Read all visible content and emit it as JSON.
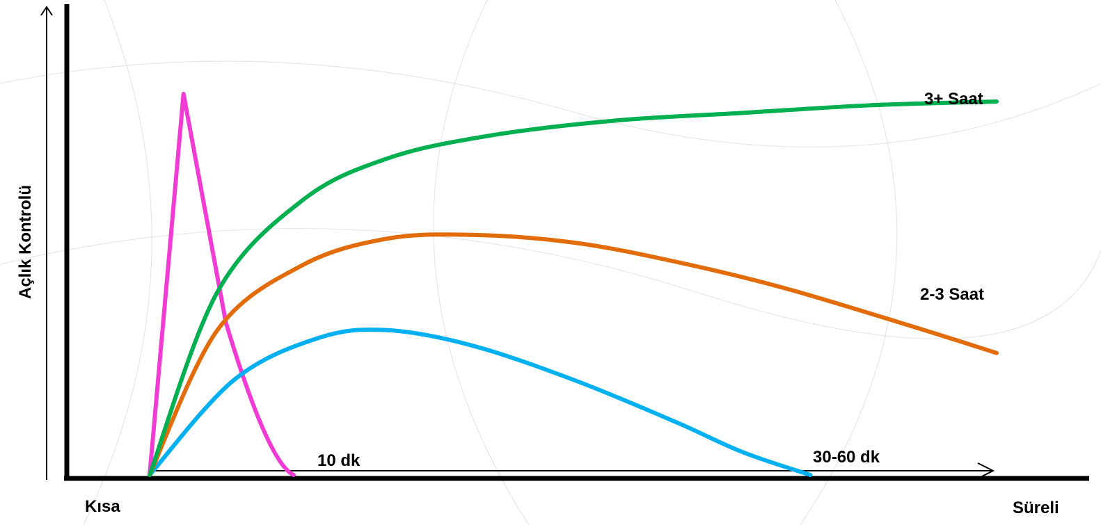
{
  "chart_data": {
    "type": "line",
    "title": "",
    "ylabel": "Açlık Kontrolü",
    "x_start_label": "Kısa",
    "x_end_label": "Süreli",
    "duration_ticks": [
      "10 dk",
      "30-60 dk"
    ],
    "xlim": [
      0,
      100
    ],
    "ylim": [
      0,
      100
    ],
    "grid": false,
    "legend": "none",
    "series": [
      {
        "key": "short",
        "color": "#f23bd4",
        "x": [
          0,
          4,
          9,
          14,
          17
        ],
        "y": [
          0,
          100,
          40,
          3,
          0
        ]
      },
      {
        "key": "medium",
        "color": "#00b0f0",
        "x": [
          0,
          10,
          20,
          28,
          38,
          50,
          62,
          70,
          78
        ],
        "y": [
          0,
          25,
          36,
          38,
          34,
          25,
          14,
          6,
          0
        ]
      },
      {
        "key": "two_three",
        "name": "2-3 Saat",
        "color": "#e36c0a",
        "x": [
          0,
          8,
          18,
          28,
          38,
          50,
          62,
          75,
          90,
          100
        ],
        "y": [
          0,
          38,
          55,
          62,
          63,
          61,
          56,
          49,
          39,
          32
        ]
      },
      {
        "key": "three_plus",
        "name": "3+ Saat",
        "color": "#00b050",
        "x": [
          0,
          8,
          18,
          28,
          40,
          55,
          70,
          85,
          100
        ],
        "y": [
          0,
          48,
          72,
          83,
          89,
          93,
          95,
          97,
          98
        ]
      }
    ]
  }
}
